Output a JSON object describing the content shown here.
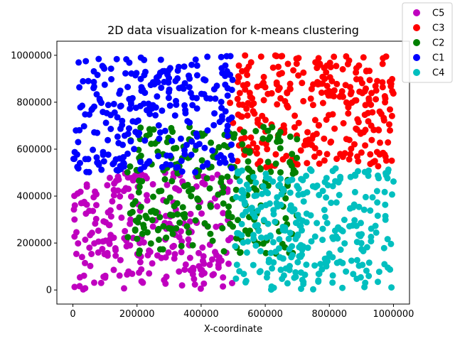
{
  "chart_data": {
    "type": "scatter",
    "title": "2D data visualization for k-means clustering",
    "xlabel": "X-coordinate",
    "ylabel": "",
    "xlim": [
      -50000,
      1050000
    ],
    "ylim": [
      -60000,
      1060000
    ],
    "xticks": [
      0,
      200000,
      400000,
      600000,
      800000,
      1000000
    ],
    "xtick_labels": [
      "0",
      "200000",
      "400000",
      "600000",
      "800000",
      "1000000"
    ],
    "yticks": [
      0,
      200000,
      400000,
      600000,
      800000,
      1000000
    ],
    "ytick_labels": [
      "0",
      "200000",
      "400000",
      "600000",
      "800000",
      "1000000"
    ],
    "grid": false,
    "legend_position": "top-right",
    "legend": [
      "C5",
      "C3",
      "C2",
      "C1",
      "C4"
    ],
    "series": [
      {
        "name": "C5",
        "color": "#bf00bf",
        "region": {
          "x": [
            0,
            500000
          ],
          "y": [
            0,
            500000
          ]
        },
        "count": 260,
        "seed": 5
      },
      {
        "name": "C3",
        "color": "#ff0000",
        "region": {
          "x": [
            480000,
            1000000
          ],
          "y": [
            520000,
            1000000
          ]
        },
        "count": 300,
        "seed": 3
      },
      {
        "name": "C2",
        "color": "#008000",
        "region": {
          "x": [
            170000,
            700000
          ],
          "y": [
            150000,
            700000
          ]
        },
        "count": 260,
        "seed": 2
      },
      {
        "name": "C1",
        "color": "#0000ff",
        "region": {
          "x": [
            0,
            500000
          ],
          "y": [
            500000,
            1000000
          ]
        },
        "count": 270,
        "seed": 1
      },
      {
        "name": "C4",
        "color": "#00bfbf",
        "region": {
          "x": [
            500000,
            1000000
          ],
          "y": [
            0,
            520000
          ]
        },
        "count": 300,
        "seed": 4
      }
    ]
  }
}
